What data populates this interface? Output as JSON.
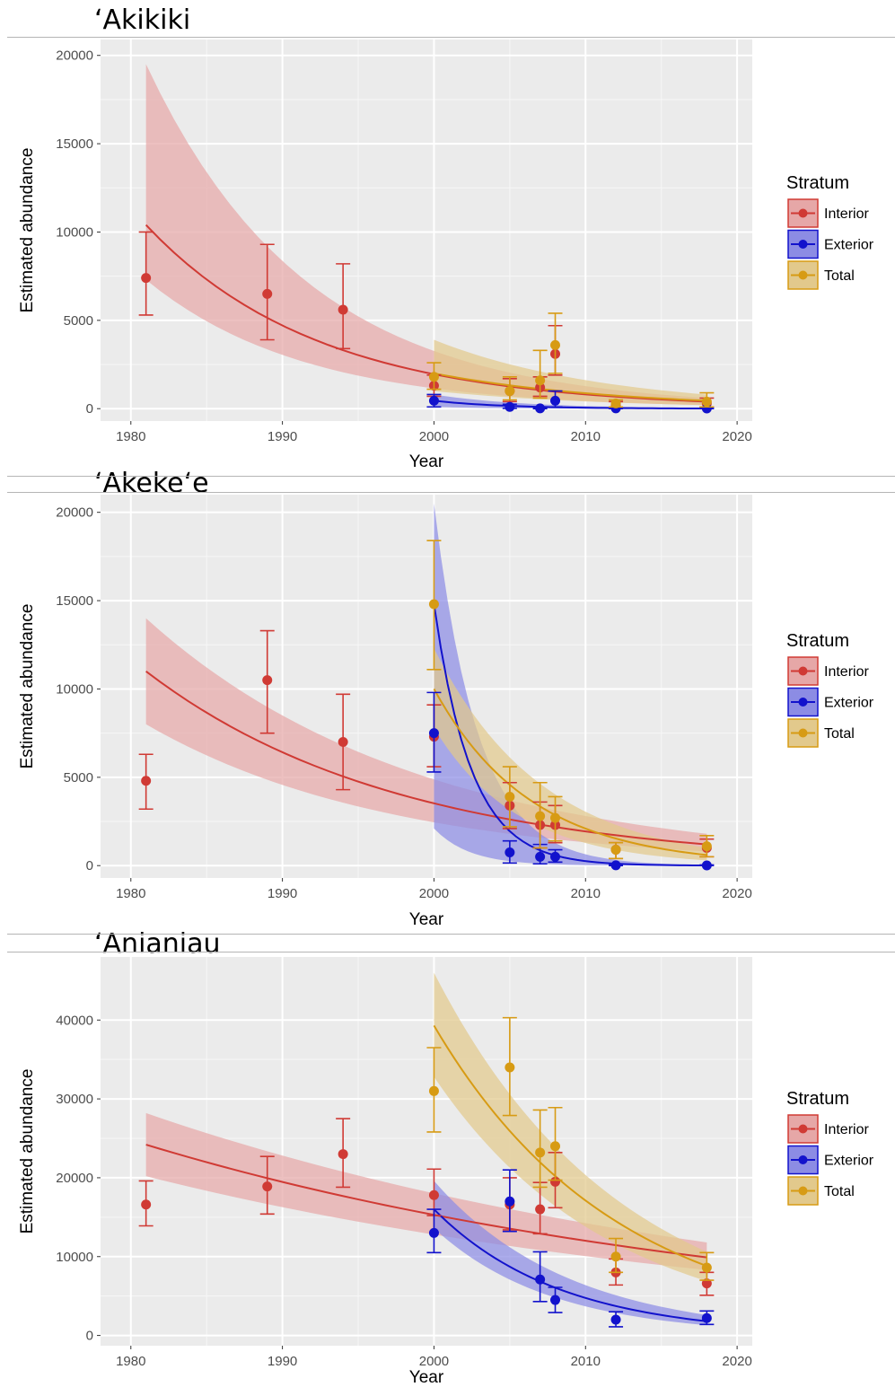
{
  "legend_title": "Stratum",
  "x_label": "Year",
  "y_label": "Estimated abundance",
  "strata": [
    {
      "name": "Interior",
      "color": "#d03a34",
      "fill": "#e6a7a7"
    },
    {
      "name": "Exterior",
      "color": "#1212cc",
      "fill": "#8c8ce4"
    },
    {
      "name": "Total",
      "color": "#d79b14",
      "fill": "#e2c98c"
    }
  ],
  "chart_data": [
    {
      "type": "scatter",
      "title": "‘Akikiki",
      "xlabel": "Year",
      "ylabel": "Estimated abundance",
      "xlim": [
        1978,
        2021
      ],
      "ylim": [
        -700,
        20900
      ],
      "xticks": [
        1980,
        1990,
        2000,
        2010,
        2020
      ],
      "yticks": [
        0,
        5000,
        10000,
        15000,
        20000
      ],
      "grid": true,
      "legend_position": "right",
      "series": [
        {
          "name": "Interior",
          "points": [
            [
              1981,
              7400,
              5300,
              10000
            ],
            [
              1989,
              6500,
              3900,
              9300
            ],
            [
              1994,
              5600,
              3400,
              8200
            ],
            [
              2000,
              1300,
              700,
              1900
            ],
            [
              2005,
              1000,
              400,
              1700
            ],
            [
              2007,
              1200,
              700,
              1800
            ],
            [
              2008,
              3100,
              1900,
              4700
            ],
            [
              2012,
              200,
              0,
              400
            ],
            [
              2018,
              300,
              100,
              600
            ]
          ],
          "trend": {
            "x": [
              1981,
              2018
            ],
            "y": [
              10400,
              400
            ],
            "lower": [
              7300,
              200
            ],
            "upper": [
              19500,
              600
            ]
          }
        },
        {
          "name": "Exterior",
          "points": [
            [
              2000,
              450,
              100,
              800
            ],
            [
              2005,
              100,
              20,
              250
            ],
            [
              2007,
              20,
              0,
              80
            ],
            [
              2008,
              450,
              100,
              1000
            ],
            [
              2012,
              20,
              0,
              60
            ],
            [
              2018,
              10,
              0,
              40
            ]
          ],
          "trend": {
            "x": [
              2000,
              2018
            ],
            "y": [
              450,
              10
            ],
            "lower": [
              100,
              0
            ],
            "upper": [
              800,
              40
            ]
          }
        },
        {
          "name": "Total",
          "points": [
            [
              2000,
              1800,
              1100,
              2600
            ],
            [
              2005,
              1000,
              500,
              1800
            ],
            [
              2007,
              1600,
              600,
              3300
            ],
            [
              2008,
              3600,
              2000,
              5400
            ],
            [
              2012,
              300,
              100,
              500
            ],
            [
              2018,
              400,
              100,
              900
            ]
          ],
          "trend": {
            "x": [
              2000,
              2018
            ],
            "y": [
              2000,
              450
            ],
            "lower": [
              1000,
              200
            ],
            "upper": [
              3900,
              800
            ]
          }
        }
      ]
    },
    {
      "type": "scatter",
      "title": "‘Akeke‘e",
      "xlabel": "Year",
      "ylabel": "Estimated abundance",
      "xlim": [
        1978,
        2021
      ],
      "ylim": [
        -700,
        21000
      ],
      "xticks": [
        1980,
        1990,
        2000,
        2010,
        2020
      ],
      "yticks": [
        0,
        5000,
        10000,
        15000,
        20000
      ],
      "grid": true,
      "legend_position": "right",
      "series": [
        {
          "name": "Interior",
          "points": [
            [
              1981,
              4800,
              3200,
              6300
            ],
            [
              1989,
              10500,
              7500,
              13300
            ],
            [
              1994,
              7000,
              4300,
              9700
            ],
            [
              2000,
              7300,
              5600,
              9100
            ],
            [
              2005,
              3400,
              2100,
              4700
            ],
            [
              2007,
              2300,
              1000,
              3600
            ],
            [
              2008,
              2300,
              1300,
              3400
            ],
            [
              2012,
              900,
              400,
              1300
            ],
            [
              2018,
              1000,
              500,
              1500
            ]
          ],
          "trend": {
            "x": [
              1981,
              2018
            ],
            "y": [
              11000,
              1200
            ],
            "lower": [
              8000,
              800
            ],
            "upper": [
              14000,
              1800
            ]
          }
        },
        {
          "name": "Exterior",
          "points": [
            [
              2000,
              7500,
              5300,
              9800
            ],
            [
              2005,
              750,
              150,
              1400
            ],
            [
              2007,
              500,
              100,
              1200
            ],
            [
              2008,
              500,
              200,
              900
            ],
            [
              2012,
              20,
              0,
              80
            ],
            [
              2018,
              10,
              0,
              40
            ]
          ],
          "trend": {
            "x": [
              2000,
              2018
            ],
            "y": [
              14800,
              10
            ],
            "lower": [
              2100,
              0
            ],
            "upper": [
              20500,
              40
            ]
          }
        },
        {
          "name": "Total",
          "points": [
            [
              2000,
              14800,
              11100,
              18400
            ],
            [
              2005,
              3900,
              2200,
              5600
            ],
            [
              2007,
              2800,
              1000,
              4700
            ],
            [
              2008,
              2700,
              1400,
              3900
            ],
            [
              2012,
              900,
              400,
              1300
            ],
            [
              2018,
              1100,
              500,
              1700
            ]
          ],
          "trend": {
            "x": [
              2000,
              2018
            ],
            "y": [
              10000,
              600
            ],
            "lower": [
              7800,
              300
            ],
            "upper": [
              12300,
              1000
            ]
          }
        }
      ]
    },
    {
      "type": "scatter",
      "title": "‘Anianiau",
      "xlabel": "Year",
      "ylabel": "Estimated abundance",
      "xlim": [
        1978,
        2021
      ],
      "ylim": [
        -1300,
        48000
      ],
      "xticks": [
        1980,
        1990,
        2000,
        2010,
        2020
      ],
      "yticks": [
        0,
        10000,
        20000,
        30000,
        40000
      ],
      "grid": true,
      "legend_position": "right",
      "series": [
        {
          "name": "Interior",
          "points": [
            [
              1981,
              16600,
              13900,
              19600
            ],
            [
              1989,
              18900,
              15400,
              22700
            ],
            [
              1994,
              23000,
              18800,
              27500
            ],
            [
              2000,
              17800,
              15200,
              21100
            ],
            [
              2005,
              16600,
              13400,
              20000
            ],
            [
              2007,
              16000,
              12900,
              19400
            ],
            [
              2008,
              19500,
              16200,
              23200
            ],
            [
              2012,
              8000,
              6400,
              9700
            ],
            [
              2018,
              6600,
              5100,
              8000
            ]
          ],
          "trend": {
            "x": [
              1981,
              2018
            ],
            "y": [
              24200,
              9900
            ],
            "lower": [
              20200,
              8300
            ],
            "upper": [
              28200,
              11800
            ]
          }
        },
        {
          "name": "Exterior",
          "points": [
            [
              2000,
              13000,
              10500,
              16000
            ],
            [
              2005,
              17000,
              13200,
              21000
            ],
            [
              2007,
              7100,
              4300,
              10600
            ],
            [
              2008,
              4500,
              2900,
              6100
            ],
            [
              2012,
              2000,
              1100,
              3000
            ],
            [
              2018,
              2200,
              1400,
              3100
            ]
          ],
          "trend": {
            "x": [
              2000,
              2018
            ],
            "y": [
              16000,
              1800
            ],
            "lower": [
              13600,
              1300
            ],
            "upper": [
              19600,
              2600
            ]
          }
        },
        {
          "name": "Total",
          "points": [
            [
              2000,
              31000,
              25800,
              36500
            ],
            [
              2005,
              34000,
              27900,
              40300
            ],
            [
              2007,
              23200,
              18800,
              28600
            ],
            [
              2008,
              24000,
              19700,
              28900
            ],
            [
              2012,
              10000,
              8000,
              12300
            ],
            [
              2018,
              8600,
              7000,
              10500
            ]
          ],
          "trend": {
            "x": [
              2000,
              2018
            ],
            "y": [
              39300,
              8800
            ],
            "lower": [
              32800,
              6900
            ],
            "upper": [
              46000,
              10600
            ]
          }
        }
      ]
    }
  ]
}
